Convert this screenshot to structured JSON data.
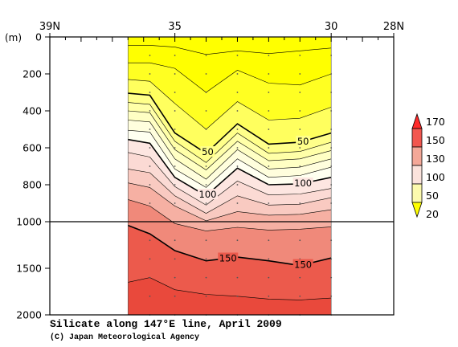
{
  "chart_data": {
    "type": "heatmap",
    "title": "Silicate along 147°E line, April 2009",
    "credit": "(C) Japan Meteorological Agency",
    "ylabel": "(m)",
    "xaxis": {
      "ticks": [
        {
          "lat": 39,
          "label": "39N"
        },
        {
          "lat": 35,
          "label": "35"
        },
        {
          "lat": 30,
          "label": "30"
        },
        {
          "lat": 28,
          "label": "28N"
        }
      ],
      "range": [
        39,
        28
      ],
      "minor_tick_step": 0.5
    },
    "yaxis": {
      "upper_ticks": [
        0,
        200,
        400,
        600,
        800,
        1000
      ],
      "upper_tick_labels": [
        "0",
        "200",
        "400",
        "600",
        "800",
        "1000"
      ],
      "lower_ticks": [
        1500,
        2000
      ],
      "lower_tick_labels": [
        "1500",
        "2000"
      ],
      "upper_range": [
        0,
        1000
      ],
      "lower_range": [
        1000,
        2000
      ]
    },
    "data_extent_lat": [
      36.5,
      30
    ],
    "stations_lat": [
      36.5,
      35.8,
      35.0,
      34.0,
      33.0,
      32.0,
      31.0,
      30.0
    ],
    "levels": [
      20,
      30,
      40,
      50,
      60,
      70,
      80,
      90,
      100,
      110,
      120,
      130,
      140,
      150,
      160,
      170
    ],
    "labeled_levels": [
      {
        "value": 50,
        "label": "50",
        "lat": 33.95
      },
      {
        "value": 50,
        "label": "50",
        "lat": 30.9
      },
      {
        "value": 100,
        "label": "100",
        "lat": 33.95
      },
      {
        "value": 100,
        "label": "100",
        "lat": 30.9
      },
      {
        "value": 150,
        "label": "150",
        "lat": 33.3
      },
      {
        "value": 150,
        "label": "150",
        "lat": 30.9
      }
    ],
    "contour_depths": {
      "20": [
        45,
        45,
        55,
        95,
        75,
        90,
        75,
        60
      ],
      "30": [
        140,
        140,
        170,
        300,
        180,
        250,
        260,
        200
      ],
      "40": [
        230,
        240,
        360,
        500,
        350,
        450,
        440,
        380
      ],
      "50": [
        305,
        315,
        520,
        630,
        470,
        580,
        570,
        520
      ],
      "60": [
        355,
        365,
        565,
        680,
        520,
        630,
        620,
        570
      ],
      "70": [
        400,
        410,
        610,
        720,
        565,
        670,
        660,
        615
      ],
      "80": [
        450,
        460,
        660,
        770,
        610,
        715,
        705,
        660
      ],
      "90": [
        505,
        515,
        715,
        815,
        660,
        760,
        750,
        705
      ],
      "100": [
        555,
        575,
        760,
        860,
        710,
        800,
        795,
        760
      ],
      "110": [
        625,
        650,
        810,
        910,
        780,
        855,
        850,
        820
      ],
      "120": [
        715,
        735,
        860,
        955,
        860,
        910,
        905,
        870
      ],
      "130": [
        790,
        815,
        915,
        995,
        945,
        965,
        960,
        935
      ],
      "140": [
        880,
        915,
        1020,
        1100,
        1060,
        1090,
        1080,
        1055
      ],
      "150": [
        1040,
        1130,
        1310,
        1420,
        1380,
        1420,
        1470,
        1390
      ],
      "160": [
        1650,
        1600,
        1730,
        1780,
        1800,
        1830,
        1840,
        1820
      ]
    },
    "colorbar": {
      "labels": [
        "170",
        "150",
        "130",
        "100",
        "50",
        "20"
      ],
      "colors": [
        "#ff2a2a",
        "#f2574f",
        "#f4a898",
        "#fbe3dc",
        "#fcfaae",
        "#ffff00"
      ]
    },
    "fill_colors": {
      "below20": "#ffff00",
      "20": "#ffff00",
      "30": "#ffff22",
      "40": "#ffff5e",
      "50": "#ffff8a",
      "60": "#ffffa8",
      "70": "#ffffc4",
      "80": "#fffedd",
      "90": "#fffff0",
      "100": "#fde6e1",
      "110": "#fbdad4",
      "120": "#f9cac1",
      "130": "#f6b0a3",
      "140": "#f0897a",
      "150": "#ec5a4c",
      "160": "#e9493c"
    },
    "grid": false,
    "colorbar_placement": "right"
  }
}
